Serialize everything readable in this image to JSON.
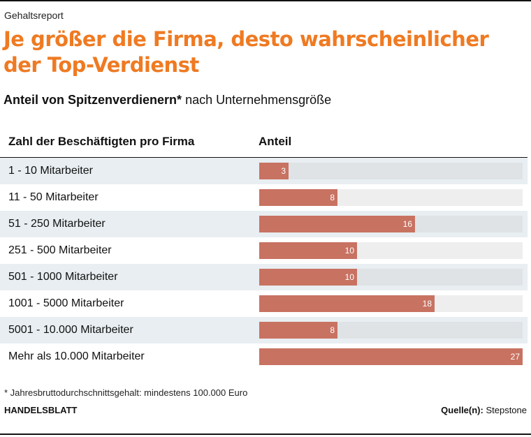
{
  "kicker": "Gehaltsreport",
  "title": "Je größer die Firma, desto wahrscheinlicher der Top-Verdienst",
  "subtitle_bold": "Anteil von Spitzenverdienern*",
  "subtitle_rest": " nach Unternehmensgröße",
  "footnote": "* Jahresbruttodurchschnittsgehalt: mindestens 100.000 Euro",
  "brand": "HANDELSBLATT",
  "source_label": "Quelle(n):",
  "source_value": " Stepstone",
  "colors": {
    "title": "#ef7a22",
    "bar": "#c87262",
    "row_alt": "#e8eef1",
    "track": "#dfe3e6"
  },
  "chart_data": {
    "type": "bar",
    "orientation": "horizontal",
    "category_header": "Zahl der Beschäftigten pro Firma",
    "value_header": "Anteil",
    "categories": [
      "1 - 10 Mitarbeiter",
      "11 - 50 Mitarbeiter",
      "51 - 250 Mitarbeiter",
      "251 - 500 Mitarbeiter",
      "501 - 1000 Mitarbeiter",
      "1001 - 5000 Mitarbeiter",
      "5001 - 10.000 Mitarbeiter",
      "Mehr als 10.000 Mitarbeiter"
    ],
    "values": [
      3,
      8,
      16,
      10,
      10,
      18,
      8,
      27
    ],
    "xlim": [
      0,
      27
    ]
  }
}
